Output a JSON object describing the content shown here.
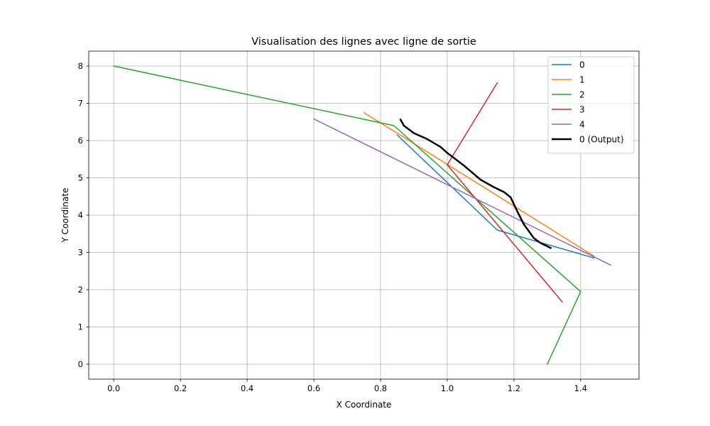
{
  "chart_data": {
    "type": "line",
    "title": "Visualisation des lignes avec ligne de sortie",
    "xlabel": "X Coordinate",
    "ylabel": "Y Coordinate",
    "xlim": [
      -0.075,
      1.575
    ],
    "ylim": [
      -0.4,
      8.4
    ],
    "xticks": [
      0.0,
      0.2,
      0.4,
      0.6,
      0.8,
      1.0,
      1.2,
      1.4
    ],
    "xtick_labels": [
      "0.0",
      "0.2",
      "0.4",
      "0.6",
      "0.8",
      "1.0",
      "1.2",
      "1.4"
    ],
    "yticks": [
      0,
      1,
      2,
      3,
      4,
      5,
      6,
      7,
      8
    ],
    "ytick_labels": [
      "0",
      "1",
      "2",
      "3",
      "4",
      "5",
      "6",
      "7",
      "8"
    ],
    "grid": true,
    "legend_position": "top-right",
    "series": [
      {
        "name": "0",
        "color": "#1f77b4",
        "width": 1.5,
        "points": [
          [
            0.85,
            6.15
          ],
          [
            1.15,
            3.6
          ],
          [
            1.44,
            2.85
          ]
        ]
      },
      {
        "name": "1",
        "color": "#ff7f0e",
        "width": 1.5,
        "points": [
          [
            0.75,
            6.75
          ],
          [
            0.85,
            6.2
          ],
          [
            1.44,
            2.9
          ]
        ]
      },
      {
        "name": "2",
        "color": "#2ca02c",
        "width": 1.5,
        "points": [
          [
            0.0,
            8.0
          ],
          [
            0.84,
            6.4
          ],
          [
            1.4,
            1.95
          ],
          [
            1.3,
            0.0
          ]
        ]
      },
      {
        "name": "3",
        "color": "#d62728",
        "width": 1.5,
        "points": [
          [
            1.15,
            7.55
          ],
          [
            1.0,
            5.35
          ],
          [
            1.345,
            1.67
          ]
        ]
      },
      {
        "name": "4",
        "color": "#9467bd",
        "width": 1.5,
        "points": [
          [
            0.6,
            6.58
          ],
          [
            1.49,
            2.66
          ]
        ]
      },
      {
        "name": "0 (Output)",
        "color": "#000000",
        "width": 2.5,
        "points": [
          [
            0.86,
            6.56
          ],
          [
            0.87,
            6.4
          ],
          [
            0.9,
            6.2
          ],
          [
            0.94,
            6.04
          ],
          [
            0.98,
            5.83
          ],
          [
            1.0,
            5.67
          ],
          [
            1.05,
            5.33
          ],
          [
            1.1,
            4.95
          ],
          [
            1.14,
            4.75
          ],
          [
            1.17,
            4.62
          ],
          [
            1.19,
            4.48
          ],
          [
            1.21,
            4.1
          ],
          [
            1.23,
            3.75
          ],
          [
            1.26,
            3.38
          ],
          [
            1.28,
            3.25
          ],
          [
            1.31,
            3.12
          ]
        ]
      }
    ]
  }
}
